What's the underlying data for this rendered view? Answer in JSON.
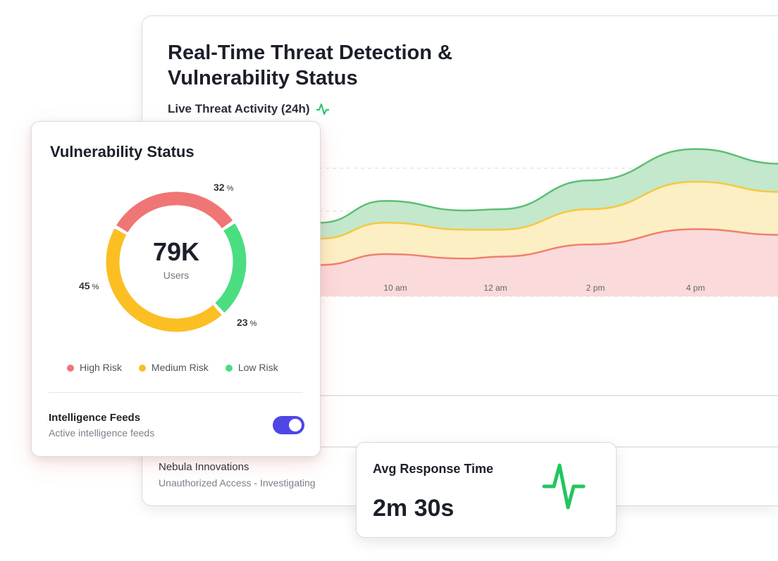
{
  "main": {
    "title": "Real-Time Threat Detection & Vulnerability Status",
    "subtitle": "Live Threat Activity (24h)",
    "subtitle_icon": "pulse-icon",
    "incident": {
      "company": "Nebula Innovations",
      "status": "Unauthorized Access - Investigating"
    }
  },
  "chart_data": {
    "type": "area",
    "stacked": true,
    "grid": true,
    "x_tick_labels": [
      "10 am",
      "12 am",
      "2 pm",
      "4 pm"
    ],
    "x": [
      5,
      7,
      8.5,
      9.8,
      11.4,
      12.1,
      13.9,
      16,
      17.7
    ],
    "series": [
      {
        "color": "#f08070",
        "values": [
          40,
          44,
          49,
          66,
          59,
          62,
          81,
          105,
          96
        ]
      },
      {
        "color": "#f5c842",
        "values": [
          35,
          38,
          41,
          49,
          45,
          42,
          55,
          74,
          67
        ]
      },
      {
        "color": "#5cbf74",
        "values": [
          22,
          24,
          25,
          34,
          30,
          32,
          45,
          51,
          44
        ]
      }
    ]
  },
  "vuln": {
    "title": "Vulnerability Status",
    "total": "79K",
    "total_label": "Users",
    "segments": [
      {
        "label": "High Risk",
        "pct": 32,
        "pct_text": "32",
        "color": "#f07575"
      },
      {
        "label": "Low Risk",
        "pct": 23,
        "pct_text": "23",
        "color": "#4ade80"
      },
      {
        "label": "Medium Risk",
        "pct": 45,
        "pct_text": "45",
        "color": "#fbbf24"
      }
    ],
    "pct_unit": "%",
    "legend": [
      "High Risk",
      "Medium Risk",
      "Low Risk"
    ],
    "feeds": {
      "title": "Intelligence Feeds",
      "subtitle": "Active intelligence feeds",
      "enabled": true,
      "toggle_color": "#4f46e5"
    }
  },
  "response": {
    "title": "Avg Response Time",
    "value": "2m 30s",
    "icon": "pulse-icon",
    "icon_color": "#22c55e"
  }
}
